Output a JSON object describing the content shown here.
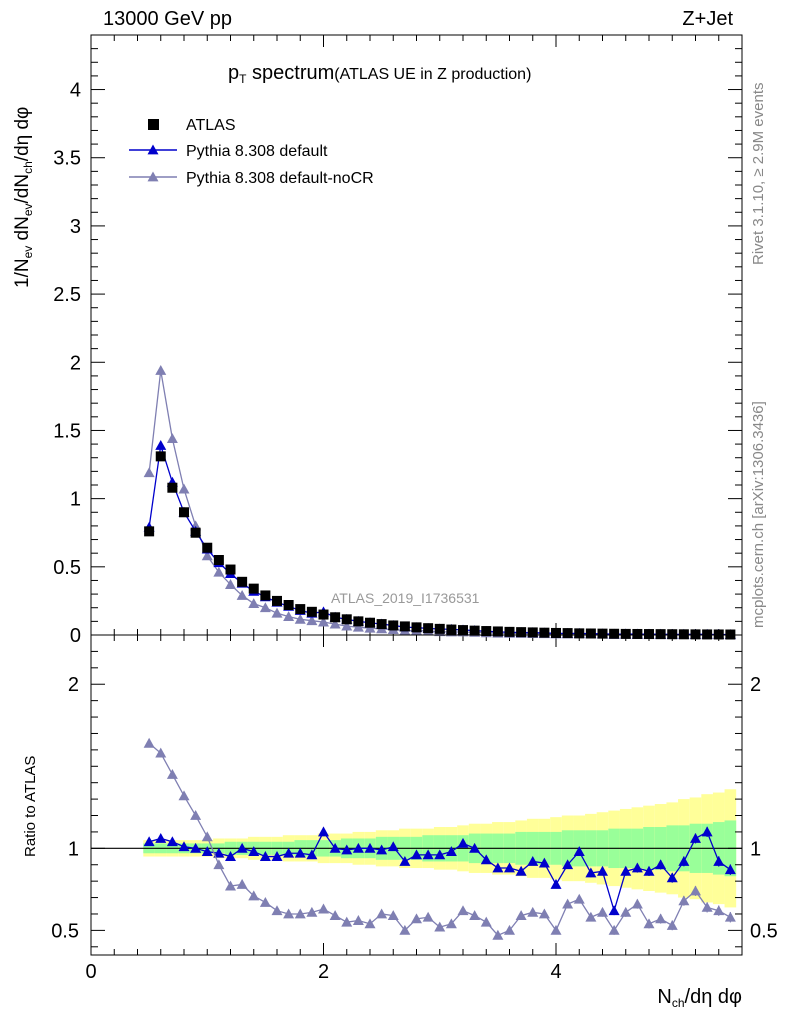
{
  "header": {
    "left": "13000 GeV pp",
    "right": "Z+Jet"
  },
  "side_labels": {
    "rivet": "Rivet 3.1.10, ≥ 2.9M events",
    "mcplots": "mcplots.cern.ch [arXiv:1306.3436]"
  },
  "title": {
    "p": "p",
    "T": "T",
    "word": "spectrum",
    "paren": "(ATLAS UE in Z production)"
  },
  "watermark": "ATLAS_2019_I1736531",
  "ylabel_top": {
    "a": "1/N",
    "a_sub": "ev",
    "b": " dN",
    "b_sub": "ev",
    "c": "/dN",
    "c_sub": "ch",
    "d": "/dη dφ"
  },
  "ylabel_ratio": "Ratio to ATLAS",
  "xlabel": {
    "a": "N",
    "a_sub": "ch",
    "b": "/dη dφ"
  },
  "colors": {
    "data": "#000000",
    "default": "#0000cc",
    "nocr": "#7f7fb2",
    "band_outer": "#ffff99",
    "band_inner": "#99ff99"
  },
  "chart_data": {
    "type": "line",
    "x": [
      0.5,
      0.6,
      0.7,
      0.8,
      0.9,
      1.0,
      1.1,
      1.2,
      1.3,
      1.4,
      1.5,
      1.6,
      1.7,
      1.8,
      1.9,
      2.0,
      2.1,
      2.2,
      2.3,
      2.4,
      2.5,
      2.6,
      2.7,
      2.8,
      2.9,
      3.0,
      3.1,
      3.2,
      3.3,
      3.4,
      3.5,
      3.6,
      3.7,
      3.8,
      3.9,
      4.0,
      4.1,
      4.2,
      4.3,
      4.4,
      4.5,
      4.6,
      4.7,
      4.8,
      4.9,
      5.0,
      5.1,
      5.2,
      5.3,
      5.4,
      5.5
    ],
    "xlim": [
      0,
      5.6
    ],
    "xticks": [
      "0",
      "2",
      "4"
    ],
    "top_panel": {
      "ylim": [
        0,
        4.4
      ],
      "yticks": [
        "0",
        "0.5",
        "1",
        "1.5",
        "2",
        "2.5",
        "3",
        "3.5",
        "4"
      ],
      "series": [
        {
          "name": "ATLAS",
          "marker": "square",
          "values": [
            0.76,
            1.31,
            1.08,
            0.9,
            0.75,
            0.64,
            0.55,
            0.48,
            0.39,
            0.34,
            0.29,
            0.25,
            0.22,
            0.19,
            0.17,
            0.15,
            0.13,
            0.115,
            0.1,
            0.09,
            0.08,
            0.07,
            0.063,
            0.056,
            0.05,
            0.045,
            0.04,
            0.036,
            0.032,
            0.029,
            0.026,
            0.023,
            0.021,
            0.019,
            0.017,
            0.015,
            0.014,
            0.012,
            0.011,
            0.01,
            0.009,
            0.008,
            0.0075,
            0.007,
            0.0063,
            0.0057,
            0.0052,
            0.0047,
            0.0043,
            0.0039,
            0.0036
          ]
        },
        {
          "name": "Pythia 8.308 default",
          "marker": "triangle",
          "values": [
            0.79,
            1.39,
            1.12,
            0.9,
            0.76,
            0.63,
            0.53,
            0.45,
            0.38,
            0.32,
            0.28,
            0.24,
            0.21,
            0.18,
            0.16,
            0.17,
            0.13,
            0.115,
            0.1,
            0.09,
            0.08,
            0.07,
            0.058,
            0.054,
            0.048,
            0.044,
            0.041,
            0.037,
            0.032,
            0.027,
            0.023,
            0.02,
            0.018,
            0.017,
            0.015,
            0.012,
            0.012,
            0.012,
            0.0095,
            0.0086,
            0.0055,
            0.007,
            0.0066,
            0.006,
            0.0057,
            0.0047,
            0.0048,
            0.005,
            0.0048,
            0.0036,
            0.0031
          ]
        },
        {
          "name": "Pythia 8.308 default-noCR",
          "marker": "triangle",
          "values": [
            1.19,
            1.94,
            1.44,
            1.07,
            0.8,
            0.58,
            0.46,
            0.37,
            0.29,
            0.23,
            0.2,
            0.16,
            0.135,
            0.115,
            0.105,
            0.095,
            0.08,
            0.065,
            0.057,
            0.05,
            0.045,
            0.04,
            0.032,
            0.033,
            0.029,
            0.024,
            0.022,
            0.022,
            0.019,
            0.016,
            0.013,
            0.012,
            0.011,
            0.01,
            0.009,
            0.0075,
            0.0075,
            0.0082,
            0.0066,
            0.0063,
            0.0045,
            0.0056,
            0.005,
            0.0038,
            0.0036,
            0.0036,
            0.0029,
            0.0035,
            0.0033,
            0.0026,
            0.0023
          ]
        }
      ]
    },
    "ratio_panel": {
      "ylim": [
        0.35,
        2.3
      ],
      "yticks": [
        "0.5",
        "1",
        "2"
      ],
      "reference_line": 1.0,
      "band_inner": [
        0.03,
        0.03,
        0.03,
        0.03,
        0.03,
        0.03,
        0.03,
        0.04,
        0.04,
        0.04,
        0.04,
        0.04,
        0.04,
        0.05,
        0.05,
        0.05,
        0.05,
        0.06,
        0.06,
        0.06,
        0.07,
        0.07,
        0.07,
        0.07,
        0.08,
        0.08,
        0.08,
        0.08,
        0.09,
        0.09,
        0.09,
        0.09,
        0.1,
        0.1,
        0.1,
        0.1,
        0.11,
        0.11,
        0.11,
        0.11,
        0.12,
        0.12,
        0.12,
        0.13,
        0.13,
        0.14,
        0.14,
        0.15,
        0.15,
        0.16,
        0.17
      ],
      "band_outer": [
        0.05,
        0.05,
        0.05,
        0.05,
        0.05,
        0.05,
        0.06,
        0.06,
        0.06,
        0.07,
        0.07,
        0.07,
        0.08,
        0.08,
        0.08,
        0.09,
        0.09,
        0.09,
        0.1,
        0.1,
        0.11,
        0.11,
        0.12,
        0.12,
        0.12,
        0.13,
        0.13,
        0.14,
        0.15,
        0.15,
        0.16,
        0.16,
        0.17,
        0.18,
        0.18,
        0.19,
        0.2,
        0.2,
        0.21,
        0.22,
        0.23,
        0.24,
        0.25,
        0.26,
        0.27,
        0.28,
        0.3,
        0.31,
        0.33,
        0.34,
        0.36
      ],
      "series": [
        {
          "name": "Pythia 8.308 default",
          "values": [
            1.04,
            1.06,
            1.04,
            1.01,
            1.0,
            0.98,
            0.97,
            0.95,
            1.0,
            0.98,
            0.95,
            0.95,
            0.97,
            0.97,
            0.96,
            1.1,
            1.0,
            0.99,
            1.0,
            1.0,
            0.99,
            1.01,
            0.92,
            0.96,
            0.96,
            0.96,
            0.98,
            1.03,
            1.0,
            0.93,
            0.88,
            0.88,
            0.86,
            0.92,
            0.91,
            0.78,
            0.9,
            0.98,
            0.85,
            0.86,
            0.62,
            0.86,
            0.88,
            0.86,
            0.9,
            0.82,
            0.92,
            1.06,
            1.1,
            0.92,
            0.87
          ]
        },
        {
          "name": "Pythia 8.308 default-noCR",
          "values": [
            1.64,
            1.58,
            1.45,
            1.32,
            1.2,
            1.07,
            0.9,
            0.77,
            0.78,
            0.71,
            0.67,
            0.62,
            0.6,
            0.6,
            0.61,
            0.63,
            0.59,
            0.55,
            0.56,
            0.54,
            0.6,
            0.59,
            0.5,
            0.57,
            0.58,
            0.52,
            0.54,
            0.62,
            0.59,
            0.55,
            0.47,
            0.5,
            0.59,
            0.61,
            0.6,
            0.5,
            0.66,
            0.69,
            0.58,
            0.61,
            0.5,
            0.61,
            0.66,
            0.54,
            0.57,
            0.53,
            0.68,
            0.74,
            0.64,
            0.62,
            0.58
          ]
        }
      ]
    }
  }
}
